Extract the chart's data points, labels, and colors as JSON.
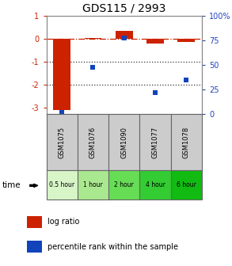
{
  "title": "GDS115 / 2993",
  "samples": [
    "GSM1075",
    "GSM1076",
    "GSM1090",
    "GSM1077",
    "GSM1078"
  ],
  "times": [
    "0.5 hour",
    "1 hour",
    "2 hour",
    "4 hour",
    "6 hour"
  ],
  "log_ratio": [
    -3.1,
    0.05,
    0.35,
    -0.22,
    -0.15
  ],
  "percentile": [
    2,
    48,
    78,
    22,
    35
  ],
  "ylim_left": [
    -3.3,
    1.0
  ],
  "ylim_right": [
    0,
    100
  ],
  "bar_color": "#cc2200",
  "dot_color": "#1144bb",
  "dashed_line_color": "#cc2200",
  "dotted_line_color": "#333333",
  "time_colors": [
    "#d8f5c8",
    "#aae890",
    "#66dd55",
    "#33cc33",
    "#11bb11"
  ],
  "label_color_log": "#cc2200",
  "label_color_pct": "#2244bb",
  "sample_box_color": "#cccccc",
  "sample_box_edge": "#666666"
}
